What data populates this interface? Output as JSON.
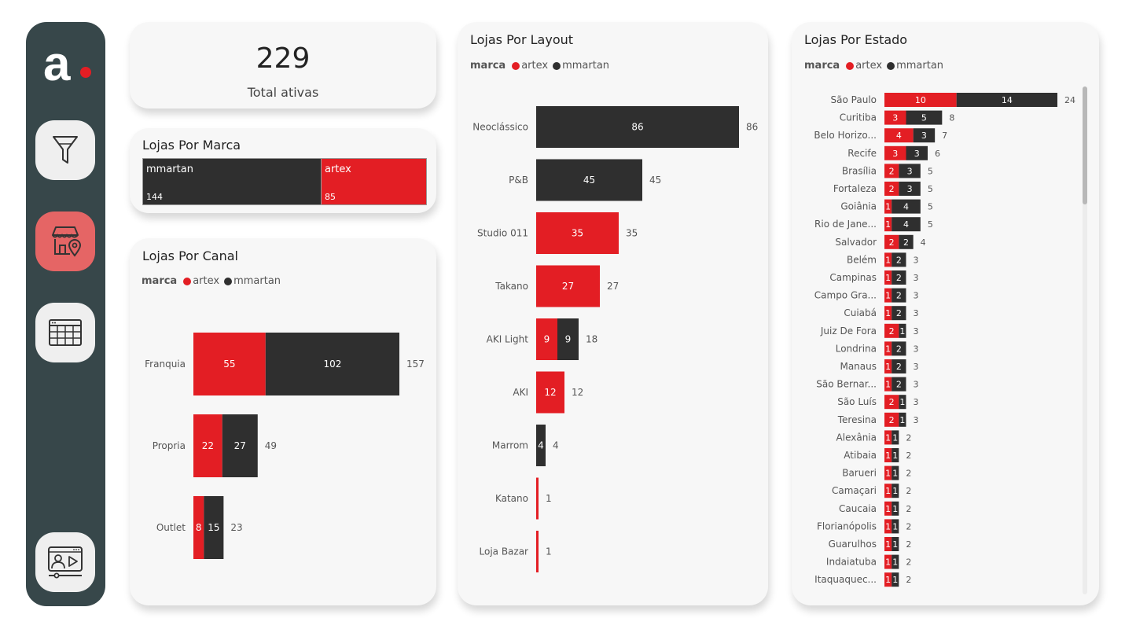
{
  "colors": {
    "artex": "#e31e24",
    "mmartan": "#2f2f2f",
    "sidebar": "#37474a",
    "active_nav": "#e56565"
  },
  "logo": {
    "letter": "a"
  },
  "nav": [
    {
      "icon": "funnel-icon"
    },
    {
      "icon": "store-location-icon",
      "active": true
    },
    {
      "icon": "table-icon"
    },
    {
      "icon": "video-presentation-icon"
    }
  ],
  "kpi": {
    "value": "229",
    "label": "Total ativas"
  },
  "marca": {
    "title": "Lojas Por Marca",
    "tiles": [
      {
        "name": "mmartan",
        "value": "144"
      },
      {
        "name": "artex",
        "value": "85"
      }
    ]
  },
  "legend": {
    "title": "marca",
    "artex": "artex",
    "mmartan": "mmartan"
  },
  "canal": {
    "title": "Lojas Por Canal"
  },
  "layout": {
    "title": "Lojas Por Layout"
  },
  "estado": {
    "title": "Lojas Por Estado"
  },
  "chart_data": [
    {
      "id": "canal",
      "type": "bar",
      "orientation": "horizontal",
      "stacked": true,
      "title": "Lojas Por Canal",
      "legend_title": "marca",
      "categories": [
        "Franquia",
        "Propria",
        "Outlet"
      ],
      "series": [
        {
          "name": "artex",
          "values": [
            55,
            22,
            8
          ]
        },
        {
          "name": "mmartan",
          "values": [
            102,
            27,
            15
          ]
        }
      ],
      "totals": [
        157,
        49,
        23
      ],
      "xlim": [
        0,
        157
      ]
    },
    {
      "id": "layout",
      "type": "bar",
      "orientation": "horizontal",
      "stacked": true,
      "title": "Lojas Por Layout",
      "legend_title": "marca",
      "categories": [
        "Neoclássico",
        "P&B",
        "Studio 011",
        "Takano",
        "AKI Light",
        "AKI",
        "Marrom",
        "Katano",
        "Loja Bazar"
      ],
      "series": [
        {
          "name": "artex",
          "values": [
            0,
            0,
            35,
            27,
            9,
            12,
            0,
            1,
            1
          ]
        },
        {
          "name": "mmartan",
          "values": [
            86,
            45,
            0,
            0,
            9,
            0,
            4,
            0,
            0
          ]
        }
      ],
      "totals": [
        86,
        45,
        35,
        27,
        18,
        12,
        4,
        1,
        1
      ],
      "xlim": [
        0,
        86
      ]
    },
    {
      "id": "estado",
      "type": "bar",
      "orientation": "horizontal",
      "stacked": true,
      "title": "Lojas Por Estado",
      "legend_title": "marca",
      "categories": [
        "São Paulo",
        "Curitiba",
        "Belo Horizo...",
        "Recife",
        "Brasília",
        "Fortaleza",
        "Goiânia",
        "Rio de Jane...",
        "Salvador",
        "Belém",
        "Campinas",
        "Campo Gra...",
        "Cuiabá",
        "Juiz De Fora",
        "Londrina",
        "Manaus",
        "São Bernar...",
        "São Luís",
        "Teresina",
        "Alexânia",
        "Atibaia",
        "Barueri",
        "Camaçari",
        "Caucaia",
        "Florianópolis",
        "Guarulhos",
        "Indaiatuba",
        "Itaquaquec..."
      ],
      "series": [
        {
          "name": "artex",
          "values": [
            10,
            3,
            4,
            3,
            2,
            2,
            1,
            1,
            2,
            1,
            1,
            1,
            1,
            2,
            1,
            1,
            1,
            2,
            2,
            1,
            1,
            1,
            1,
            1,
            1,
            1,
            1,
            1
          ]
        },
        {
          "name": "mmartan",
          "values": [
            14,
            5,
            3,
            3,
            3,
            3,
            4,
            4,
            2,
            2,
            2,
            2,
            2,
            1,
            2,
            2,
            2,
            1,
            1,
            1,
            1,
            1,
            1,
            1,
            1,
            1,
            1,
            1
          ]
        }
      ],
      "totals": [
        24,
        8,
        7,
        6,
        5,
        5,
        5,
        5,
        4,
        3,
        3,
        3,
        3,
        3,
        3,
        3,
        3,
        3,
        3,
        2,
        2,
        2,
        2,
        2,
        2,
        2,
        2,
        2
      ],
      "xlim": [
        0,
        24
      ]
    }
  ]
}
